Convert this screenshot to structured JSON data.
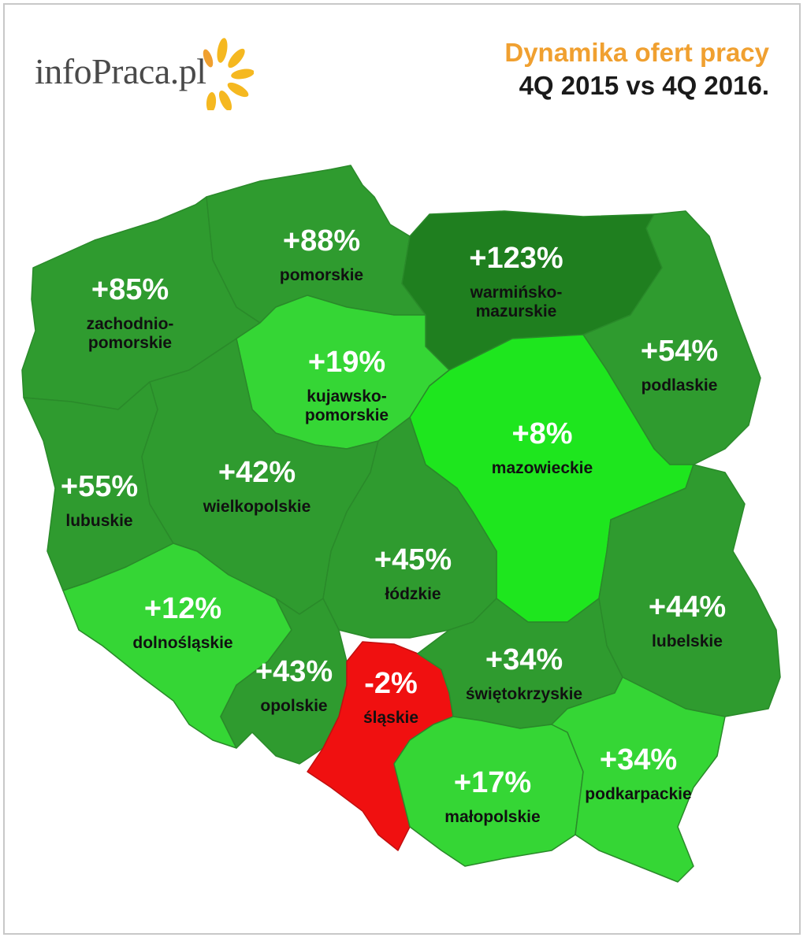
{
  "logo": {
    "text": "infoPraca.pl"
  },
  "title": {
    "line1": "Dynamika ofert pracy",
    "line2": "4Q 2015 vs 4Q 2016."
  },
  "colors": {
    "dark_green": "#2f9b2f",
    "mid_green": "#3cb43c",
    "light_green": "#35d635",
    "bright_green": "#1ee61e",
    "darkest_green": "#1f7f1f",
    "red": "#f01010",
    "accent": "#f0a030"
  },
  "regions": [
    {
      "id": "zachodniopomorskie",
      "value": "+85%",
      "label_lines": [
        "zachodnio-",
        "pomorskie"
      ]
    },
    {
      "id": "pomorskie",
      "value": "+88%",
      "label_lines": [
        "pomorskie"
      ]
    },
    {
      "id": "warminsko-mazurskie",
      "value": "+123%",
      "label_lines": [
        "warmińsko-",
        "mazurskie"
      ]
    },
    {
      "id": "podlaskie",
      "value": "+54%",
      "label_lines": [
        "podlaskie"
      ]
    },
    {
      "id": "kujawsko-pomorskie",
      "value": "+19%",
      "label_lines": [
        "kujawsko-",
        "pomorskie"
      ]
    },
    {
      "id": "mazowieckie",
      "value": "+8%",
      "label_lines": [
        "mazowieckie"
      ]
    },
    {
      "id": "lubuskie",
      "value": "+55%",
      "label_lines": [
        "lubuskie"
      ]
    },
    {
      "id": "wielkopolskie",
      "value": "+42%",
      "label_lines": [
        "wielkopolskie"
      ]
    },
    {
      "id": "lodzkie",
      "value": "+45%",
      "label_lines": [
        "łódzkie"
      ]
    },
    {
      "id": "lubelskie",
      "value": "+44%",
      "label_lines": [
        "lubelskie"
      ]
    },
    {
      "id": "dolnoslaskie",
      "value": "+12%",
      "label_lines": [
        "dolnośląskie"
      ]
    },
    {
      "id": "opolskie",
      "value": "+43%",
      "label_lines": [
        "opolskie"
      ]
    },
    {
      "id": "slaskie",
      "value": "-2%",
      "label_lines": [
        "śląskie"
      ]
    },
    {
      "id": "swietokrzyskie",
      "value": "+34%",
      "label_lines": [
        "świętokrzyskie"
      ]
    },
    {
      "id": "malopolskie",
      "value": "+17%",
      "label_lines": [
        "małopolskie"
      ]
    },
    {
      "id": "podkarpackie",
      "value": "+34%",
      "label_lines": [
        "podkarpackie"
      ]
    }
  ]
}
